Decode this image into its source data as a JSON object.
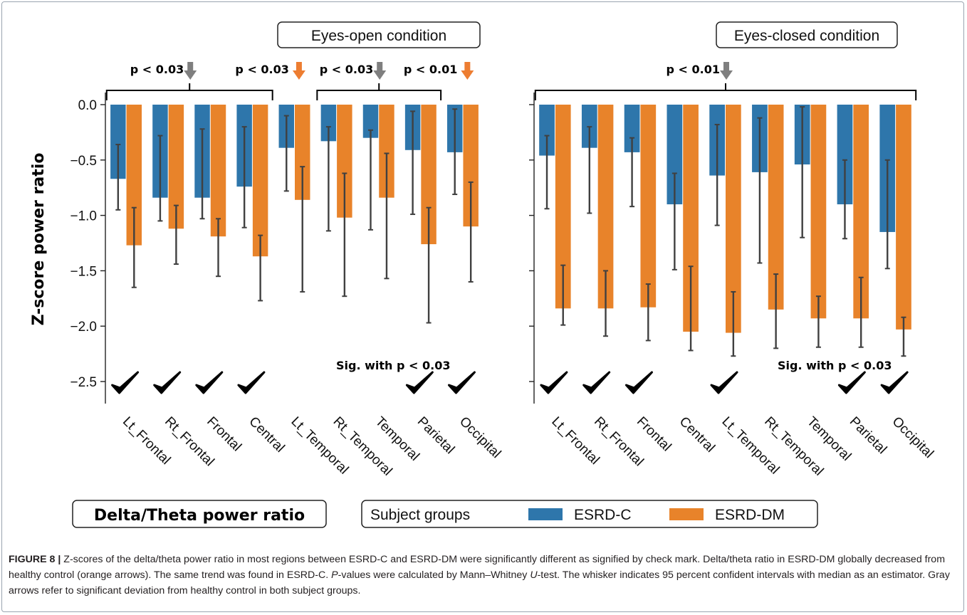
{
  "chart_data": [
    {
      "type": "bar",
      "title": "Eyes-open condition",
      "ylabel": "Z-score power ratio",
      "ylim": [
        -2.7,
        0.15
      ],
      "yticks": [
        0.0,
        -0.5,
        -1.0,
        -1.5,
        -2.0,
        -2.5
      ],
      "ytick_labels": [
        "0.0",
        "−0.5",
        "−1.0",
        "−1.5",
        "−2.0",
        "−2.5"
      ],
      "categories": [
        "Lt_Frontal",
        "Rt_Frontal",
        "Frontal",
        "Central",
        "Lt_Temporal",
        "Rt_Temporal",
        "Temporal",
        "Parietal",
        "Occipital"
      ],
      "series": [
        {
          "name": "ESRD-C",
          "values": [
            -0.67,
            -0.84,
            -0.84,
            -0.74,
            -0.39,
            -0.33,
            -0.3,
            -0.41,
            -0.43
          ],
          "ci_low": [
            -0.95,
            -1.05,
            -1.03,
            -1.11,
            -0.78,
            -1.14,
            -1.13,
            -0.99,
            -0.81
          ],
          "ci_high": [
            -0.36,
            -0.28,
            -0.22,
            -0.2,
            -0.1,
            -0.2,
            -0.23,
            -0.06,
            -0.04
          ]
        },
        {
          "name": "ESRD-DM",
          "values": [
            -1.27,
            -1.12,
            -1.19,
            -1.37,
            -0.86,
            -1.02,
            -0.84,
            -1.26,
            -1.1
          ],
          "ci_low": [
            -1.65,
            -1.44,
            -1.55,
            -1.77,
            -1.69,
            -1.73,
            -1.57,
            -1.97,
            -1.6
          ],
          "ci_high": [
            -0.93,
            -0.91,
            -1.03,
            -1.18,
            -0.56,
            -0.62,
            -0.44,
            -0.93,
            -0.7
          ]
        }
      ],
      "checkmarks": [
        true,
        true,
        true,
        true,
        false,
        false,
        false,
        true,
        true
      ],
      "significance_note": "Sig. with p < 0.03",
      "brackets": [
        {
          "label": "p < 0.03",
          "from": 0,
          "to": 3,
          "arrow": "gray"
        },
        {
          "label": "p < 0.03",
          "from": 4,
          "to": 4,
          "arrow": "orange"
        },
        {
          "label": "p < 0.03",
          "from": 5,
          "to": 7,
          "arrow": "gray"
        },
        {
          "label": "p < 0.01",
          "from": 8,
          "to": 8,
          "arrow": "orange"
        }
      ]
    },
    {
      "type": "bar",
      "title": "Eyes-closed condition",
      "ylim": [
        -2.7,
        0.15
      ],
      "categories": [
        "Lt_Frontal",
        "Rt_Frontal",
        "Frontal",
        "Central",
        "Lt_Temporal",
        "Rt_Temporal",
        "Temporal",
        "Parietal",
        "Occipital"
      ],
      "series": [
        {
          "name": "ESRD-C",
          "values": [
            -0.46,
            -0.39,
            -0.43,
            -0.9,
            -0.64,
            -0.61,
            -0.54,
            -0.9,
            -1.15
          ],
          "ci_low": [
            -0.94,
            -0.98,
            -0.92,
            -1.49,
            -1.09,
            -1.43,
            -1.2,
            -1.21,
            -1.48
          ],
          "ci_high": [
            -0.28,
            -0.2,
            -0.3,
            -0.62,
            -0.18,
            -0.12,
            -0.02,
            -0.5,
            -0.5
          ]
        },
        {
          "name": "ESRD-DM",
          "values": [
            -1.84,
            -1.84,
            -1.83,
            -2.05,
            -2.06,
            -1.85,
            -1.93,
            -1.93,
            -2.03
          ],
          "ci_low": [
            -1.99,
            -2.09,
            -2.13,
            -2.22,
            -2.27,
            -2.2,
            -2.19,
            -2.19,
            -2.27
          ],
          "ci_high": [
            -1.45,
            -1.5,
            -1.62,
            -1.46,
            -1.69,
            -1.53,
            -1.73,
            -1.56,
            -1.92
          ]
        }
      ],
      "checkmarks": [
        true,
        true,
        true,
        false,
        true,
        false,
        false,
        true,
        true
      ],
      "significance_note": "Sig. with p < 0.03",
      "brackets": [
        {
          "label": "p < 0.01",
          "from": 0,
          "to": 8,
          "arrow": "gray"
        }
      ]
    }
  ],
  "colors": {
    "esrd_c": "#2e76ab",
    "esrd_dm": "#e8832a",
    "gray_arrow": "#7f7f7f",
    "orange_arrow": "#ed7d31",
    "errorbar": "#404040"
  },
  "ratio_label": "Delta/Theta power ratio",
  "legend": {
    "title": "Subject groups",
    "items": [
      "ESRD-C",
      "ESRD-DM"
    ]
  },
  "caption": {
    "figure_label": "FIGURE 8 |",
    "line1": " Z-scores of the delta/theta power ratio in most regions between ESRD-C and ESRD-DM were significantly different as signified by check mark. Delta/theta ratio in ESRD-DM globally decreased from healthy control (orange arrows). The same trend was found in ESRD-C. ",
    "p_italic": "P",
    "line2": "-values were calculated by Mann–Whitney ",
    "u_italic": "U",
    "line3": "-test. The whisker indicates 95 percent confident intervals with median as an estimator. Gray arrows refer to significant deviation from healthy control in both subject groups."
  }
}
